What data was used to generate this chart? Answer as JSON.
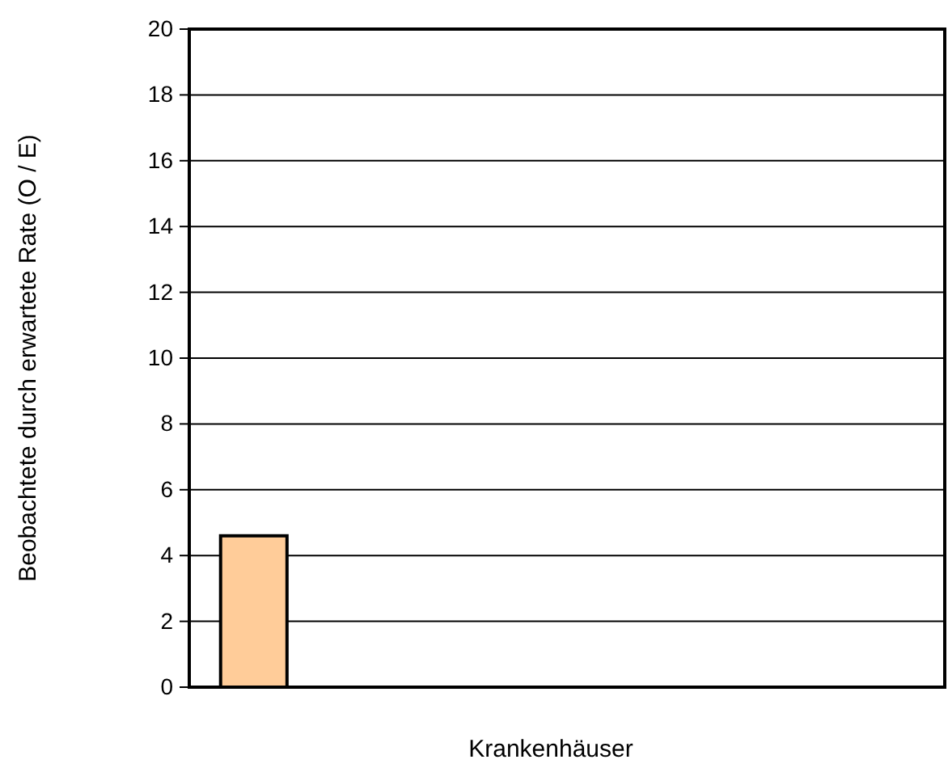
{
  "chart_data": {
    "type": "bar",
    "xlabel": "Krankenhäuser",
    "ylabel": "Beobachtete durch erwartete Rate (O / E)",
    "categories": [
      null,
      null,
      null,
      null,
      null,
      null
    ],
    "values": [
      4.6,
      null,
      null,
      null,
      null,
      null
    ],
    "color": "#ffcc99",
    "ylim": [
      0,
      20
    ],
    "yticks": [
      0,
      2,
      4,
      6,
      8,
      10,
      12,
      14,
      16,
      18,
      20
    ],
    "grid": "y"
  }
}
